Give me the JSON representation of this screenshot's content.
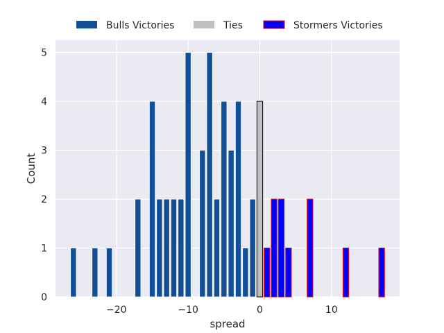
{
  "chart_data": {
    "type": "bar",
    "title": "",
    "xlabel": "spread",
    "ylabel": "Count",
    "xlim": [
      -28.5,
      19.5
    ],
    "ylim": [
      0,
      5.25
    ],
    "xticks": [
      -20,
      -10,
      0,
      10
    ],
    "xtick_labels": [
      "−20",
      "−10",
      "0",
      "10"
    ],
    "yticks": [
      0,
      1,
      2,
      3,
      4,
      5
    ],
    "ytick_labels": [
      "0",
      "1",
      "2",
      "3",
      "4",
      "5"
    ],
    "grid": true,
    "legend_position": "top",
    "colors": {
      "background": "#eaeaf2",
      "grid": "#ffffff",
      "bulls": "#134f96",
      "ties": "#c0c0c0",
      "stormers": "#0000ff",
      "stormers_edge": "#ff0000",
      "ties_edge": "#000000"
    },
    "series": [
      {
        "name": "Bulls Victories",
        "key": "bulls",
        "x": [
          -26,
          -23,
          -21,
          -17,
          -15,
          -14,
          -13,
          -12,
          -11,
          -10,
          -8,
          -7,
          -6,
          -5,
          -4,
          -3,
          -2,
          -1
        ],
        "values": [
          1,
          1,
          1,
          2,
          4,
          2,
          2,
          2,
          2,
          5,
          3,
          5,
          2,
          4,
          3,
          4,
          1,
          2
        ]
      },
      {
        "name": "Ties",
        "key": "ties",
        "x": [
          0
        ],
        "values": [
          4
        ]
      },
      {
        "name": "Stormers Victories",
        "key": "stormers",
        "x": [
          1,
          2,
          3,
          4,
          7,
          12,
          17
        ],
        "values": [
          1,
          2,
          2,
          1,
          2,
          1,
          1
        ]
      }
    ]
  }
}
